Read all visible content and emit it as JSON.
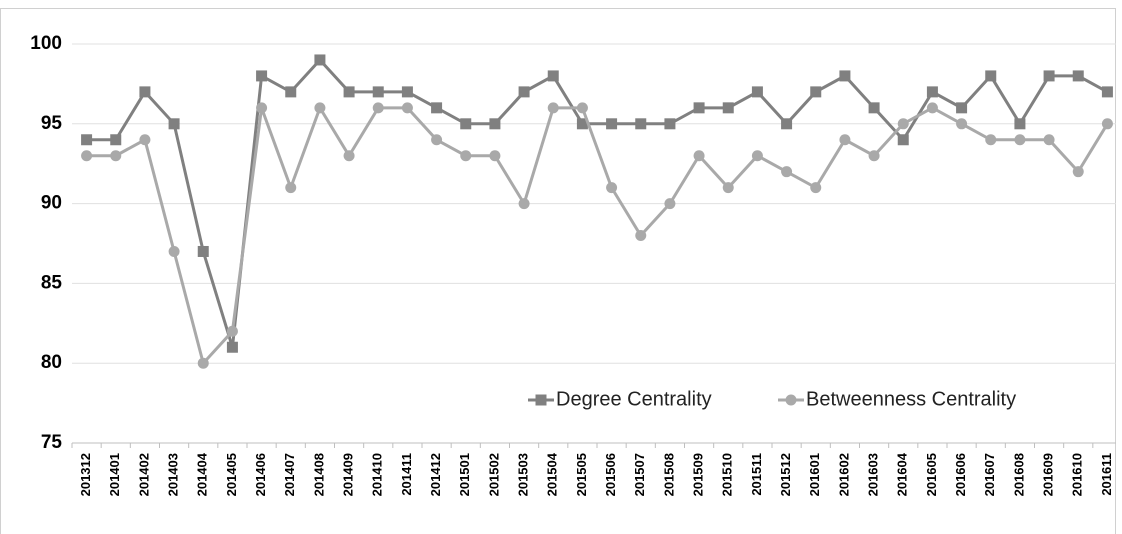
{
  "chart_data": {
    "type": "line",
    "categories": [
      "201312",
      "201401",
      "201402",
      "201403",
      "201404",
      "201405",
      "201406",
      "201407",
      "201408",
      "201409",
      "201410",
      "201411",
      "201412",
      "201501",
      "201502",
      "201503",
      "201504",
      "201505",
      "201506",
      "201507",
      "201508",
      "201509",
      "201510",
      "201511",
      "201512",
      "201601",
      "201602",
      "201603",
      "201604",
      "201605",
      "201606",
      "201607",
      "201608",
      "201609",
      "201610",
      "201611"
    ],
    "series": [
      {
        "name": "Degree Centrality",
        "color": "#808080",
        "marker": "square",
        "values": [
          94,
          94,
          97,
          95,
          87,
          81,
          98,
          97,
          99,
          97,
          97,
          97,
          96,
          95,
          95,
          97,
          98,
          95,
          95,
          95,
          95,
          96,
          96,
          97,
          95,
          97,
          98,
          96,
          94,
          97,
          96,
          98,
          95,
          98,
          98,
          97
        ]
      },
      {
        "name": "Betweenness Centrality",
        "color": "#a9a9a9",
        "marker": "circle",
        "values": [
          93,
          93,
          94,
          87,
          80,
          82,
          96,
          91,
          96,
          93,
          96,
          96,
          94,
          93,
          93,
          90,
          96,
          96,
          91,
          88,
          90,
          93,
          91,
          93,
          92,
          91,
          94,
          93,
          95,
          96,
          95,
          94,
          94,
          94,
          92,
          95
        ]
      }
    ],
    "ylim": [
      75,
      100
    ],
    "yticks": [
      75,
      80,
      85,
      90,
      95,
      100
    ],
    "grid": true
  }
}
